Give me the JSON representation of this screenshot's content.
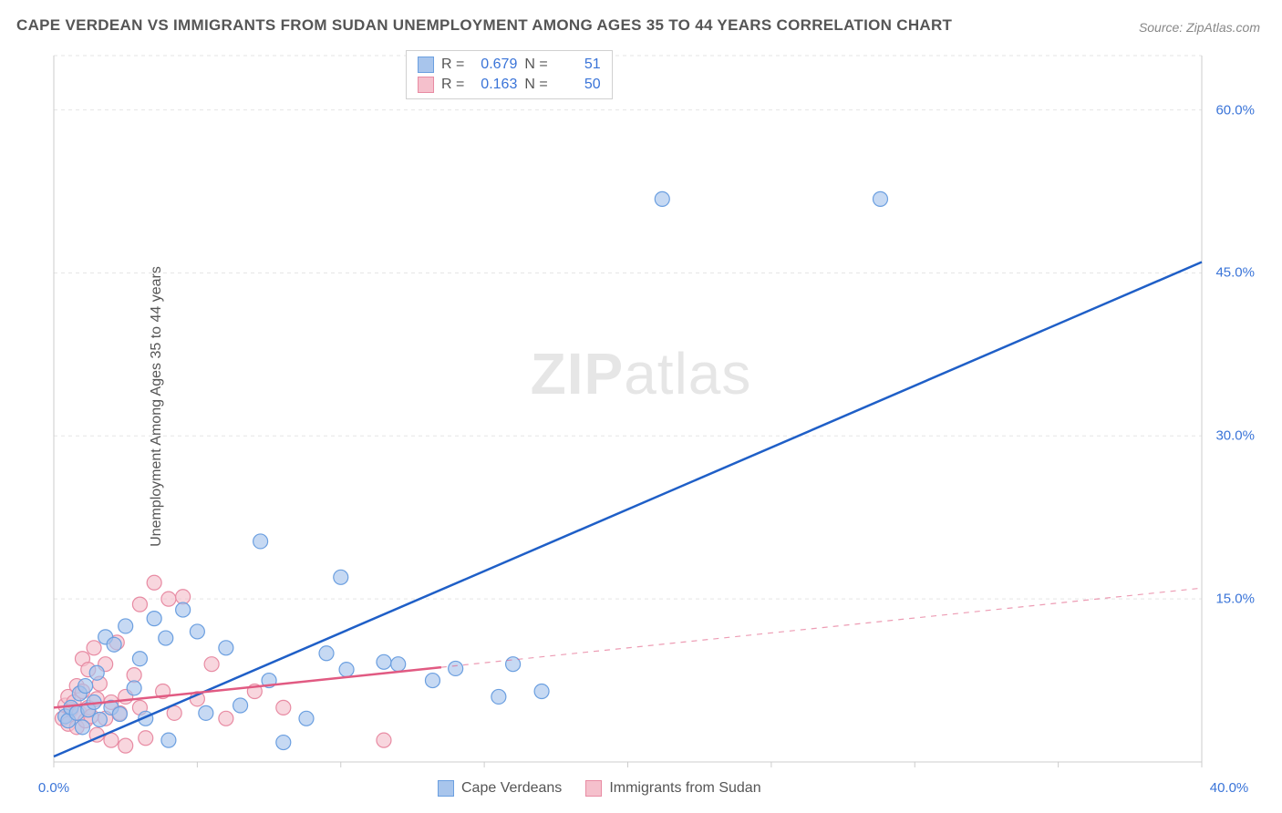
{
  "title": "CAPE VERDEAN VS IMMIGRANTS FROM SUDAN UNEMPLOYMENT AMONG AGES 35 TO 44 YEARS CORRELATION CHART",
  "source": "Source: ZipAtlas.com",
  "ylabel": "Unemployment Among Ages 35 to 44 years",
  "watermark_bold": "ZIP",
  "watermark_thin": "atlas",
  "chart": {
    "type": "scatter-correlation",
    "xlim": [
      0,
      40
    ],
    "ylim": [
      0,
      65
    ],
    "xticks": [
      0,
      5,
      10,
      15,
      20,
      25,
      30,
      35,
      40
    ],
    "yticks": [
      15,
      30,
      45,
      60
    ],
    "xtick_labels": {
      "0": "0.0%",
      "40": "40.0%"
    },
    "ytick_labels": {
      "15": "15.0%",
      "30": "30.0%",
      "45": "45.0%",
      "60": "60.0%"
    },
    "grid_color": "#e5e5e5",
    "axis_color": "#cccccc",
    "background_color": "#ffffff",
    "label_color": "#3a74d8",
    "label_fontsize": 15
  },
  "series": [
    {
      "name": "Cape Verdeans",
      "color_fill": "#a8c5ec",
      "color_stroke": "#6b9fe0",
      "marker_radius": 8,
      "line_color": "#1f5fc7",
      "line_width": 2.5,
      "R": "0.679",
      "N": "51",
      "regression": {
        "x1": 0,
        "y1": 0.5,
        "x2": 40,
        "y2": 46
      },
      "trend_solid_until_x": 40,
      "points": [
        [
          0.4,
          4.2
        ],
        [
          0.5,
          3.8
        ],
        [
          0.6,
          5.0
        ],
        [
          0.8,
          4.5
        ],
        [
          0.9,
          6.3
        ],
        [
          1.0,
          3.2
        ],
        [
          1.1,
          7.0
        ],
        [
          1.2,
          4.8
        ],
        [
          1.4,
          5.5
        ],
        [
          1.5,
          8.2
        ],
        [
          1.6,
          3.9
        ],
        [
          1.8,
          11.5
        ],
        [
          2.0,
          5.0
        ],
        [
          2.1,
          10.8
        ],
        [
          2.3,
          4.4
        ],
        [
          2.5,
          12.5
        ],
        [
          2.8,
          6.8
        ],
        [
          3.0,
          9.5
        ],
        [
          3.2,
          4.0
        ],
        [
          3.5,
          13.2
        ],
        [
          3.9,
          11.4
        ],
        [
          4.0,
          2.0
        ],
        [
          4.5,
          14.0
        ],
        [
          5.0,
          12.0
        ],
        [
          5.3,
          4.5
        ],
        [
          6.0,
          10.5
        ],
        [
          6.5,
          5.2
        ],
        [
          7.2,
          20.3
        ],
        [
          7.5,
          7.5
        ],
        [
          8.0,
          1.8
        ],
        [
          8.8,
          4.0
        ],
        [
          9.5,
          10.0
        ],
        [
          10.0,
          17.0
        ],
        [
          10.2,
          8.5
        ],
        [
          11.5,
          9.2
        ],
        [
          12.0,
          9.0
        ],
        [
          13.2,
          7.5
        ],
        [
          14.0,
          8.6
        ],
        [
          15.5,
          6.0
        ],
        [
          16.0,
          9.0
        ],
        [
          17.0,
          6.5
        ],
        [
          21.2,
          51.8
        ],
        [
          28.8,
          51.8
        ]
      ]
    },
    {
      "name": "Immigrants from Sudan",
      "color_fill": "#f5c0cc",
      "color_stroke": "#e88ba3",
      "marker_radius": 8,
      "line_color": "#e15a82",
      "line_width": 2.5,
      "R": "0.163",
      "N": "50",
      "regression": {
        "x1": 0,
        "y1": 5.0,
        "x2": 40,
        "y2": 16.0
      },
      "trend_solid_until_x": 13.5,
      "points": [
        [
          0.3,
          4.0
        ],
        [
          0.4,
          5.2
        ],
        [
          0.5,
          3.5
        ],
        [
          0.5,
          6.0
        ],
        [
          0.6,
          4.8
        ],
        [
          0.7,
          5.5
        ],
        [
          0.8,
          3.2
        ],
        [
          0.8,
          7.0
        ],
        [
          0.9,
          4.5
        ],
        [
          1.0,
          6.5
        ],
        [
          1.0,
          9.5
        ],
        [
          1.1,
          3.8
        ],
        [
          1.2,
          5.0
        ],
        [
          1.2,
          8.5
        ],
        [
          1.3,
          4.2
        ],
        [
          1.4,
          10.5
        ],
        [
          1.5,
          5.8
        ],
        [
          1.5,
          2.5
        ],
        [
          1.6,
          7.2
        ],
        [
          1.8,
          4.0
        ],
        [
          1.8,
          9.0
        ],
        [
          2.0,
          5.5
        ],
        [
          2.0,
          2.0
        ],
        [
          2.2,
          11.0
        ],
        [
          2.3,
          4.5
        ],
        [
          2.5,
          6.0
        ],
        [
          2.5,
          1.5
        ],
        [
          2.8,
          8.0
        ],
        [
          3.0,
          5.0
        ],
        [
          3.0,
          14.5
        ],
        [
          3.2,
          2.2
        ],
        [
          3.5,
          16.5
        ],
        [
          3.8,
          6.5
        ],
        [
          4.0,
          15.0
        ],
        [
          4.2,
          4.5
        ],
        [
          4.5,
          15.2
        ],
        [
          5.0,
          5.8
        ],
        [
          5.5,
          9.0
        ],
        [
          6.0,
          4.0
        ],
        [
          7.0,
          6.5
        ],
        [
          8.0,
          5.0
        ],
        [
          11.5,
          2.0
        ]
      ]
    }
  ],
  "legend_stats": {
    "R_label": "R =",
    "N_label": "N ="
  },
  "bottom_legend": {
    "items": [
      "Cape Verdeans",
      "Immigrants from Sudan"
    ]
  }
}
